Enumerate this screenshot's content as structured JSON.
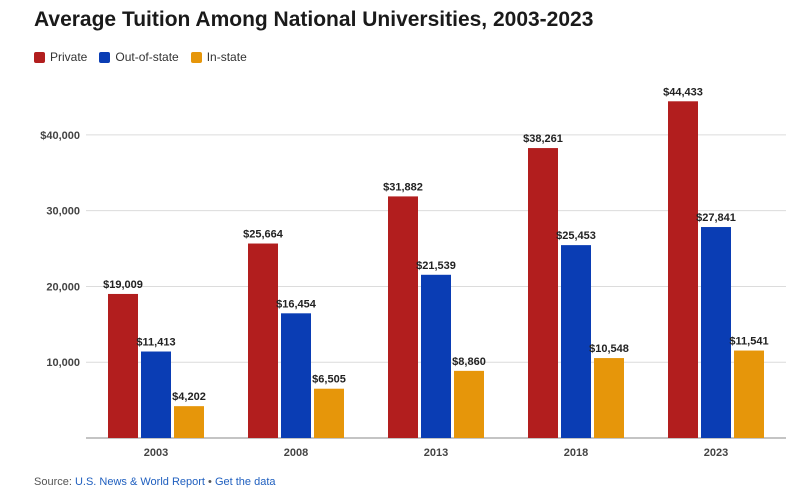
{
  "chart_data": {
    "type": "bar",
    "title": "Average Tuition Among National Universities, 2003-2023",
    "categories": [
      "2003",
      "2008",
      "2013",
      "2018",
      "2023"
    ],
    "series": [
      {
        "name": "Private",
        "color": "#b21e1e",
        "values": [
          19009,
          25664,
          31882,
          38261,
          44433
        ],
        "labels": [
          "$19,009",
          "$25,664",
          "$31,882",
          "$38,261",
          "$44,433"
        ]
      },
      {
        "name": "Out-of-state",
        "color": "#0a3db4",
        "values": [
          11413,
          16454,
          21539,
          25453,
          27841
        ],
        "labels": [
          "$11,413",
          "$16,454",
          "$21,539",
          "$25,453",
          "$27,841"
        ]
      },
      {
        "name": "In-state",
        "color": "#e6960a",
        "values": [
          4202,
          6505,
          8860,
          10548,
          11541
        ],
        "labels": [
          "$4,202",
          "$6,505",
          "$8,860",
          "$10,548",
          "$11,541"
        ]
      }
    ],
    "yticks": [
      10000,
      20000,
      30000,
      40000
    ],
    "ytick_labels": [
      "10,000",
      "20,000",
      "30,000",
      "$40,000"
    ],
    "ylim": [
      0,
      45000
    ],
    "grid": true,
    "legend": "top-left"
  },
  "source": {
    "prefix": "Source: ",
    "name": "U.S. News & World Report",
    "separator": " • ",
    "link": "Get the data"
  }
}
